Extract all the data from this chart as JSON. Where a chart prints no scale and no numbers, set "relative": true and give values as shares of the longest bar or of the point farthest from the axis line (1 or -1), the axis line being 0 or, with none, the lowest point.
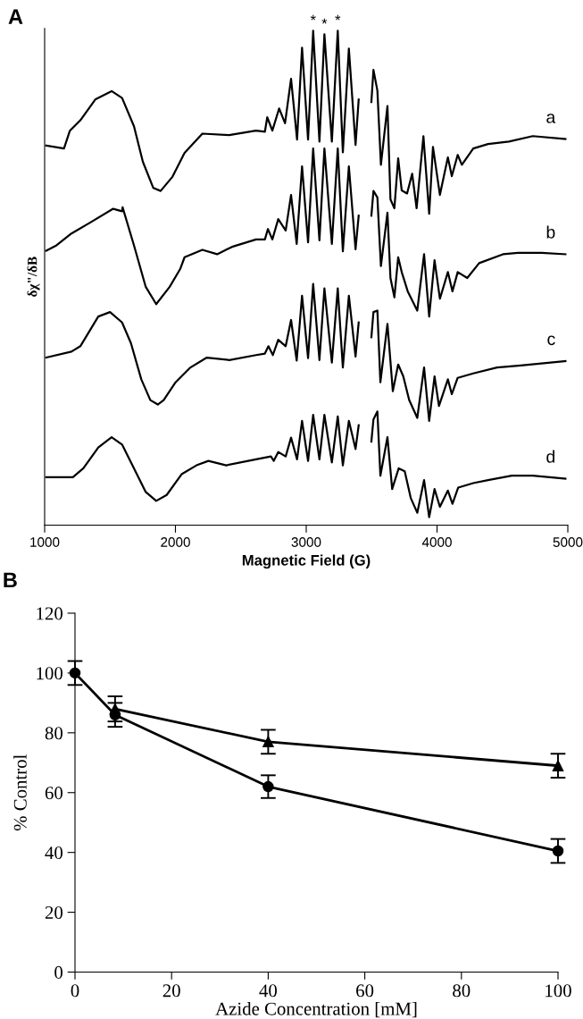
{
  "chart_data": [
    {
      "type": "line",
      "relative": true,
      "xlabel": "Magnetic Field (G)",
      "ylabel": "δχ\"/δB",
      "xlim": [
        1000,
        5000
      ],
      "xticks": [
        1000,
        2000,
        3000,
        4000,
        5000
      ],
      "tick_labels": "x",
      "grid": false,
      "marker": "none",
      "line_style": "solid",
      "annotations": [
        "A",
        {
          "text": "*",
          "x": 3053,
          "y": 1.0
        },
        {
          "text": "*",
          "x": 3139,
          "y": 0.993
        },
        {
          "text": "*",
          "x": 3241,
          "y": 1.0
        }
      ],
      "series": [
        {
          "name": "a",
          "color": "#000000",
          "x": [
            1012,
            1148,
            1193,
            1273,
            1387,
            1512,
            1592,
            1683,
            1751,
            1831,
            1887,
            1978,
            2070,
            2206,
            2411,
            2616,
            2684,
            2702,
            2741,
            2793,
            2838,
            2884,
            2930,
            2968,
            3014,
            3053,
            3101,
            3139,
            3196,
            3241,
            3280,
            3326,
            3377,
            3401,
            3450,
            3498,
            3514,
            3544,
            3571,
            3621,
            3644,
            3674,
            3703,
            3730,
            3771,
            3810,
            3844,
            3896,
            3940,
            3969,
            4022,
            4083,
            4113,
            4158,
            4190,
            4277,
            4390,
            4550,
            4732,
            4982
          ],
          "values": [
            0.768,
            0.762,
            0.798,
            0.819,
            0.861,
            0.878,
            0.864,
            0.807,
            0.735,
            0.682,
            0.676,
            0.705,
            0.753,
            0.792,
            0.789,
            0.798,
            0.796,
            0.825,
            0.798,
            0.843,
            0.813,
            0.903,
            0.78,
            0.966,
            0.78,
            1.0,
            0.776,
            0.993,
            0.776,
            1.0,
            0.754,
            0.964,
            0.769,
            0.861,
            null,
            0.856,
            0.921,
            0.879,
            0.729,
            0.848,
            0.659,
            0.641,
            0.742,
            0.677,
            0.671,
            0.711,
            0.641,
            0.787,
            0.63,
            0.765,
            0.668,
            0.744,
            0.706,
            0.749,
            0.729,
            0.762,
            0.771,
            0.776,
            0.787,
            0.781
          ]
        },
        {
          "name": "b",
          "color": "#000000",
          "x": [
            1012,
            1091,
            1205,
            1341,
            1524,
            1592,
            1596,
            1683,
            1773,
            1853,
            1956,
            2036,
            2070,
            2206,
            2319,
            2433,
            2616,
            2684,
            2707,
            2741,
            2786,
            2843,
            2884,
            2927,
            2968,
            3014,
            3053,
            3101,
            3139,
            3196,
            3241,
            3280,
            3326,
            3377,
            3401,
            3450,
            3498,
            3514,
            3544,
            3571,
            3621,
            3644,
            3674,
            3703,
            3730,
            3776,
            3849,
            3901,
            3940,
            3981,
            4022,
            4083,
            4118,
            4158,
            4231,
            4322,
            4504,
            4618,
            4800,
            4982
          ],
          "values": [
            0.555,
            0.566,
            0.59,
            0.611,
            0.64,
            0.635,
            0.643,
            0.566,
            0.482,
            0.447,
            0.482,
            0.518,
            0.542,
            0.557,
            0.548,
            0.563,
            0.578,
            0.578,
            0.599,
            0.578,
            0.619,
            0.596,
            0.668,
            0.569,
            0.726,
            0.572,
            0.762,
            0.576,
            0.762,
            0.569,
            0.762,
            0.554,
            0.726,
            0.558,
            0.626,
            null,
            0.626,
            0.676,
            0.663,
            0.524,
            0.632,
            0.5,
            0.461,
            0.542,
            0.512,
            0.473,
            0.434,
            0.548,
            0.422,
            0.536,
            0.458,
            0.512,
            0.473,
            0.512,
            0.5,
            0.53,
            0.548,
            0.551,
            0.551,
            0.548
          ]
        },
        {
          "name": "c",
          "color": "#000000",
          "x": [
            1012,
            1205,
            1273,
            1410,
            1500,
            1592,
            1660,
            1739,
            1808,
            1865,
            1910,
            2001,
            2115,
            2240,
            2411,
            2616,
            2684,
            2711,
            2745,
            2786,
            2843,
            2884,
            2927,
            2968,
            3014,
            3053,
            3101,
            3139,
            3196,
            3241,
            3280,
            3326,
            3377,
            3401,
            3450,
            3498,
            3514,
            3544,
            3567,
            3621,
            3662,
            3703,
            3742,
            3787,
            3849,
            3901,
            3940,
            3981,
            4015,
            4083,
            4113,
            4158,
            4277,
            4459,
            4640,
            4982
          ],
          "values": [
            0.339,
            0.351,
            0.362,
            0.422,
            0.431,
            0.41,
            0.368,
            0.295,
            0.253,
            0.244,
            0.253,
            0.289,
            0.319,
            0.339,
            0.334,
            0.344,
            0.347,
            0.362,
            0.344,
            0.375,
            0.362,
            0.415,
            0.333,
            0.464,
            0.338,
            0.488,
            0.334,
            0.479,
            0.329,
            0.479,
            0.319,
            0.464,
            0.341,
            0.41,
            null,
            0.38,
            0.431,
            0.434,
            0.289,
            0.407,
            0.271,
            0.325,
            0.301,
            0.253,
            0.217,
            0.319,
            0.211,
            0.301,
            0.241,
            0.295,
            0.265,
            0.298,
            0.307,
            0.319,
            0.323,
            0.332
          ]
        },
        {
          "name": "d",
          "color": "#000000",
          "x": [
            1012,
            1216,
            1296,
            1410,
            1512,
            1592,
            1683,
            1773,
            1853,
            1933,
            2047,
            2161,
            2252,
            2389,
            2616,
            2730,
            2752,
            2786,
            2843,
            2884,
            2930,
            2968,
            3014,
            3053,
            3101,
            3139,
            3196,
            3241,
            3280,
            3326,
            3377,
            3401,
            3450,
            3498,
            3514,
            3544,
            3567,
            3621,
            3657,
            3707,
            3753,
            3799,
            3849,
            3901,
            3940,
            3981,
            4022,
            4083,
            4118,
            4162,
            4276,
            4390,
            4572,
            4732,
            4982
          ],
          "values": [
            0.097,
            0.097,
            0.115,
            0.157,
            0.178,
            0.163,
            0.115,
            0.067,
            0.049,
            0.061,
            0.103,
            0.121,
            0.13,
            0.121,
            0.133,
            0.139,
            0.13,
            0.148,
            0.139,
            0.177,
            0.133,
            0.211,
            0.13,
            0.223,
            0.133,
            0.223,
            0.127,
            0.22,
            0.121,
            0.211,
            0.154,
            0.202,
            null,
            0.169,
            0.214,
            0.23,
            0.1,
            0.178,
            0.073,
            0.115,
            0.109,
            0.055,
            0.025,
            0.091,
            0.016,
            0.073,
            0.037,
            0.07,
            0.043,
            0.076,
            0.085,
            0.091,
            0.1,
            0.1,
            0.094
          ]
        }
      ]
    },
    {
      "type": "line",
      "xlabel": "Azide Concentration [mM]",
      "ylabel": "% Control",
      "x": [
        0,
        8.3,
        40,
        100
      ],
      "xlim": [
        0,
        100
      ],
      "xticks": [
        0,
        20,
        40,
        60,
        80,
        100
      ],
      "ylim": [
        0,
        120
      ],
      "yticks": [
        0,
        20,
        40,
        60,
        80,
        100,
        120
      ],
      "grid": false,
      "line_style": "solid",
      "annotations": [
        "B"
      ],
      "series": [
        {
          "color": "#000000",
          "marker": "circle",
          "values": [
            100,
            86,
            62,
            40.5
          ],
          "errors": [
            4,
            4,
            3.8,
            4
          ]
        },
        {
          "color": "#000000",
          "marker": "triangle",
          "values": [
            null,
            88,
            77,
            69
          ],
          "errors": [
            null,
            4.2,
            4,
            4
          ]
        }
      ]
    }
  ]
}
